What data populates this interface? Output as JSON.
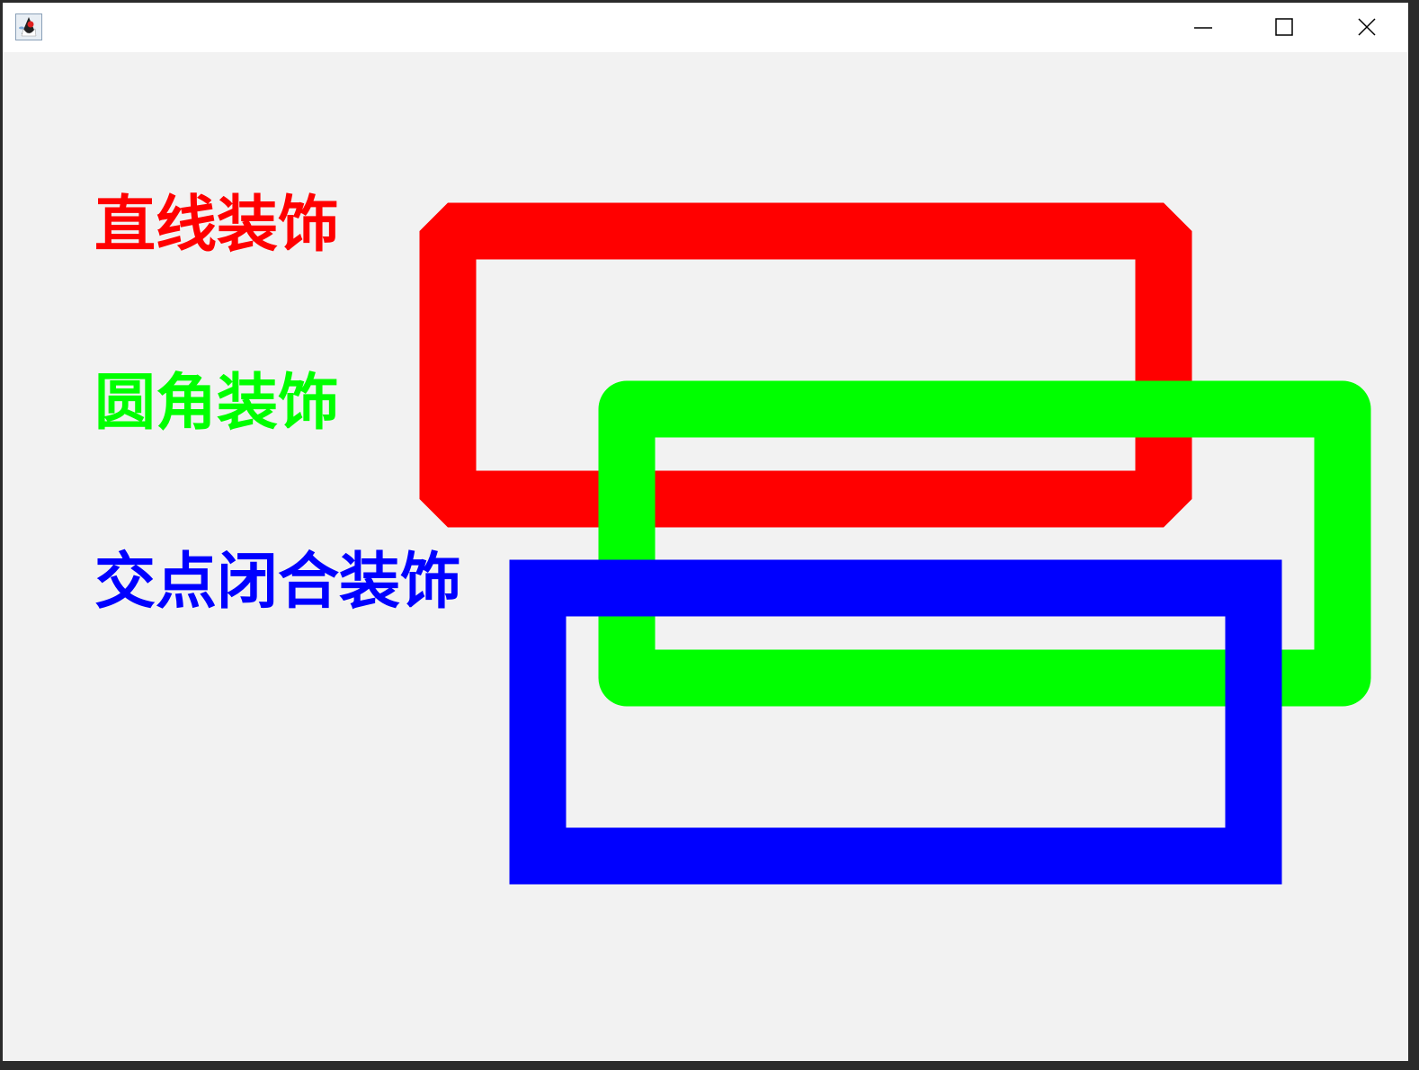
{
  "window": {
    "icon": "java-duke-icon",
    "controls": [
      "minimize-icon",
      "maximize-icon",
      "close-icon"
    ]
  },
  "labels": {
    "bevel": "直线装饰",
    "round": "圆角装饰",
    "miter": "交点闭合装饰"
  },
  "colors": {
    "bevel": "#ff0000",
    "round": "#00ff00",
    "miter": "#0000ff",
    "background": "#f2f2f2"
  },
  "joins": [
    "bevel",
    "round",
    "miter"
  ]
}
